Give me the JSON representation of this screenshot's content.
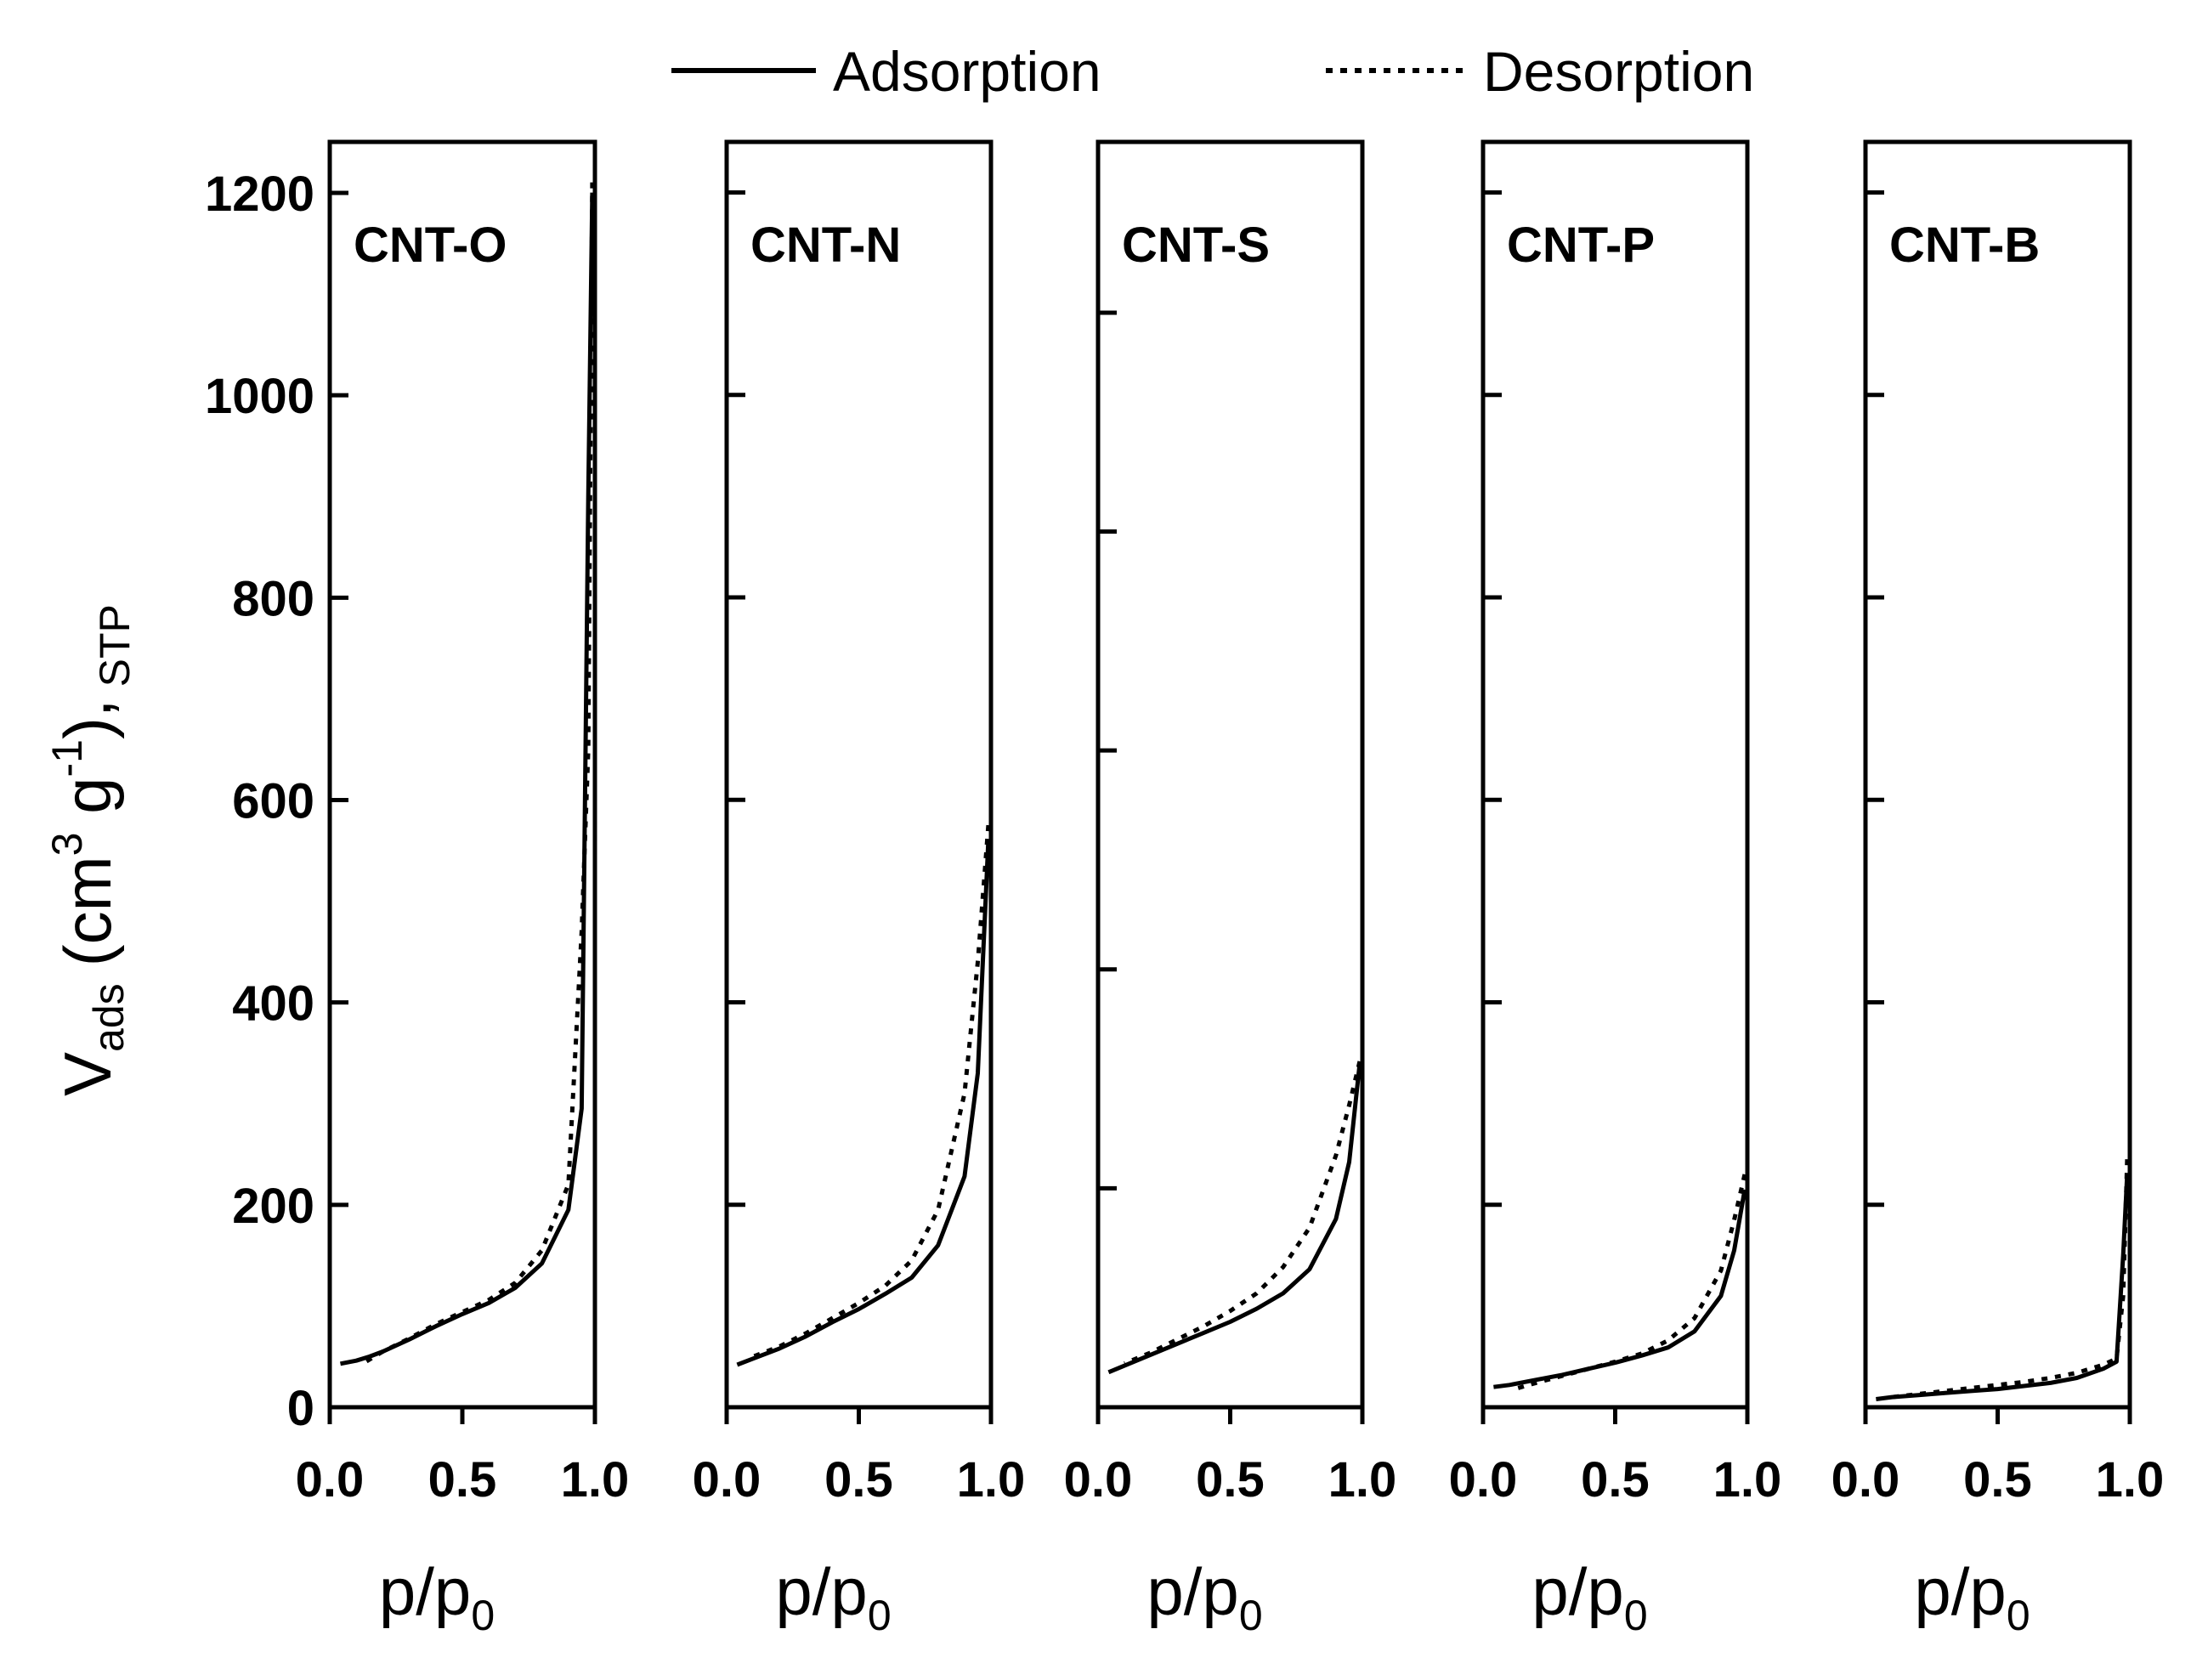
{
  "chart_data": {
    "type": "line",
    "legend": {
      "placement": "top",
      "entries": [
        {
          "name": "Adsorption",
          "style": "solid"
        },
        {
          "name": "Desorption",
          "style": "dotted"
        }
      ]
    },
    "ylabel": {
      "main": "V",
      "sub": "ads",
      "units": "(cm",
      "sup3": "3",
      "g": " g",
      "supm1": "-1",
      "close": "),",
      "stp": "STP"
    },
    "xlabel": {
      "main": "p/p",
      "sub": "0"
    },
    "ylim": [
      0,
      1250
    ],
    "yticks": [
      "0",
      "200",
      "400",
      "600",
      "800",
      "1000",
      "1200"
    ],
    "xlim": [
      0.0,
      1.0
    ],
    "xticks": [
      "0.0",
      "0.5",
      "1.0"
    ],
    "color": "#000000",
    "panels": [
      {
        "label": "CNT-O",
        "ylim": [
          0,
          1250
        ],
        "minor_tick_values": [
          200,
          400,
          600,
          800,
          1000,
          1200
        ],
        "adsorption": {
          "x": [
            0.04,
            0.1,
            0.15,
            0.2,
            0.3,
            0.4,
            0.5,
            0.6,
            0.7,
            0.8,
            0.9,
            0.95,
            0.975,
            0.99
          ],
          "y": [
            43,
            46,
            50,
            55,
            67,
            80,
            92,
            103,
            118,
            142,
            195,
            295,
            900,
            1200
          ]
        },
        "desorption": {
          "x": [
            0.99,
            0.975,
            0.95,
            0.9,
            0.8,
            0.7,
            0.6,
            0.5,
            0.4,
            0.3,
            0.2,
            0.13
          ],
          "y": [
            1210,
            650,
            470,
            220,
            155,
            123,
            106,
            94,
            82,
            68,
            55,
            44
          ]
        }
      },
      {
        "label": "CNT-N",
        "ylim": [
          0,
          1250
        ],
        "minor_tick_values": [
          200,
          400,
          600,
          800,
          1000,
          1200
        ],
        "adsorption": {
          "x": [
            0.04,
            0.1,
            0.2,
            0.3,
            0.4,
            0.5,
            0.6,
            0.7,
            0.8,
            0.9,
            0.95,
            0.99
          ],
          "y": [
            42,
            48,
            58,
            70,
            84,
            97,
            112,
            128,
            160,
            228,
            330,
            560
          ]
        },
        "desorption": {
          "x": [
            0.99,
            0.95,
            0.9,
            0.8,
            0.7,
            0.6,
            0.5,
            0.4,
            0.3,
            0.2,
            0.1
          ],
          "y": [
            575,
            440,
            310,
            195,
            145,
            120,
            103,
            88,
            73,
            60,
            50
          ]
        }
      },
      {
        "label": "CNT-S",
        "ylim": [
          0,
          578
        ],
        "minor_tick_values": [
          100,
          200,
          300,
          400,
          500
        ],
        "adsorption": {
          "x": [
            0.04,
            0.1,
            0.2,
            0.3,
            0.4,
            0.5,
            0.6,
            0.7,
            0.8,
            0.9,
            0.95,
            0.99
          ],
          "y": [
            16,
            19,
            24,
            29,
            34,
            39,
            45,
            52,
            63,
            86,
            112,
            157
          ]
        },
        "desorption": {
          "x": [
            0.99,
            0.95,
            0.9,
            0.8,
            0.7,
            0.6,
            0.5,
            0.4,
            0.3,
            0.2,
            0.1
          ],
          "y": [
            158,
            138,
            115,
            82,
            64,
            52,
            44,
            37,
            31,
            25,
            20
          ]
        }
      },
      {
        "label": "CNT-P",
        "ylim": [
          0,
          1250
        ],
        "minor_tick_values": [
          200,
          400,
          600,
          800,
          1000,
          1200
        ],
        "adsorption": {
          "x": [
            0.04,
            0.1,
            0.2,
            0.3,
            0.4,
            0.5,
            0.6,
            0.7,
            0.8,
            0.9,
            0.95,
            0.99
          ],
          "y": [
            20,
            22,
            27,
            32,
            38,
            44,
            51,
            59,
            75,
            110,
            155,
            215
          ]
        },
        "desorption": {
          "x": [
            0.99,
            0.95,
            0.9,
            0.8,
            0.7,
            0.6,
            0.5,
            0.4,
            0.3,
            0.2,
            0.12
          ],
          "y": [
            230,
            185,
            135,
            88,
            66,
            53,
            45,
            38,
            31,
            24,
            18
          ]
        }
      },
      {
        "label": "CNT-B",
        "ylim": [
          0,
          1250
        ],
        "minor_tick_values": [
          200,
          400,
          600,
          800,
          1000,
          1200
        ],
        "adsorption": {
          "x": [
            0.04,
            0.1,
            0.2,
            0.3,
            0.4,
            0.5,
            0.6,
            0.7,
            0.8,
            0.9,
            0.95,
            0.975,
            0.99
          ],
          "y": [
            8,
            10,
            12,
            14,
            16,
            18,
            21,
            24,
            29,
            38,
            45,
            150,
            230
          ]
        },
        "desorption": {
          "x": [
            0.99,
            0.975,
            0.95,
            0.9,
            0.8,
            0.7,
            0.6,
            0.5,
            0.4,
            0.3,
            0.2,
            0.1
          ],
          "y": [
            245,
            110,
            48,
            42,
            34,
            29,
            25,
            22,
            19,
            16,
            13,
            10
          ]
        }
      }
    ]
  }
}
